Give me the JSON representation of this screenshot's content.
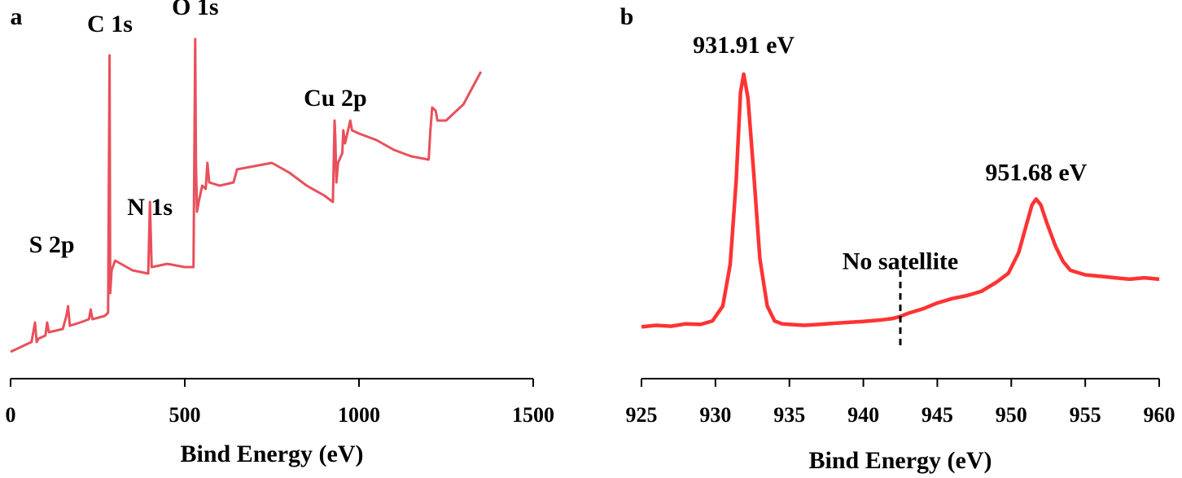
{
  "chart_data": [
    {
      "panel": "a",
      "type": "line",
      "xlabel": "Bind Energy (eV)",
      "ylabel": "",
      "xlim": [
        0,
        1500
      ],
      "ylim": [
        0,
        100
      ],
      "x_ticks": [
        "0",
        "500",
        "1000",
        "1500"
      ],
      "tick_values": [
        0,
        500,
        1000,
        1500
      ],
      "line_color": "#e8505b",
      "annotations": [
        {
          "text": "S 2p",
          "x": 165,
          "y": 15
        },
        {
          "text": "C 1s",
          "x": 285,
          "y": 92
        },
        {
          "text": "N 1s",
          "x": 400,
          "y": 40
        },
        {
          "text": "O 1s",
          "x": 530,
          "y": 96
        },
        {
          "text": "Cu 2p",
          "x": 932,
          "y": 60
        }
      ],
      "series": [
        {
          "x": [
            0,
            20,
            40,
            60,
            70,
            75,
            80,
            100,
            105,
            110,
            150,
            160,
            165,
            170,
            200,
            225,
            230,
            235,
            270,
            280,
            284,
            286,
            290,
            300,
            350,
            395,
            400,
            405,
            450,
            500,
            525,
            530,
            532,
            535,
            540,
            550,
            560,
            565,
            570,
            600,
            640,
            650,
            700,
            750,
            800,
            850,
            900,
            925,
            930,
            932,
            935,
            940,
            952,
            955,
            960,
            975,
            980,
            1000,
            1050,
            1100,
            1150,
            1200,
            1205,
            1210,
            1220,
            1225,
            1250,
            1300,
            1330,
            1350
          ],
          "y": [
            2,
            3,
            4,
            5,
            11,
            5,
            6,
            7,
            11,
            8,
            9,
            13,
            16,
            10,
            11,
            12,
            15,
            12,
            13,
            14,
            93,
            20,
            27,
            30,
            27,
            26,
            48,
            28,
            29,
            28,
            28,
            98,
            60,
            45,
            48,
            53,
            52,
            60,
            54,
            53,
            54,
            58,
            59,
            60,
            57,
            53,
            50,
            48,
            73,
            68,
            54,
            60,
            63,
            70,
            66,
            73,
            70,
            69,
            67,
            64,
            62,
            61,
            70,
            77,
            76,
            73,
            73,
            78,
            84,
            88
          ]
        }
      ]
    },
    {
      "panel": "b",
      "type": "line",
      "xlabel": "Bind Energy (eV)",
      "ylabel": "",
      "xlim": [
        925,
        960
      ],
      "ylim": [
        0,
        100
      ],
      "x_ticks": [
        "925",
        "930",
        "935",
        "940",
        "945",
        "950",
        "955",
        "960"
      ],
      "tick_values": [
        925,
        930,
        935,
        940,
        945,
        950,
        955,
        960
      ],
      "line_color": "#ff3333",
      "annotations": [
        {
          "text": "931.91 eV",
          "x": 931.91,
          "y": 83
        },
        {
          "text": "951.68 eV",
          "x": 951.68,
          "y": 41
        },
        {
          "text": "No satellite",
          "x": 942.5,
          "y": 15
        }
      ],
      "marker_x": 942.5,
      "series": [
        {
          "x": [
            925,
            926,
            927,
            928,
            929,
            929.8,
            930.5,
            931,
            931.4,
            931.7,
            931.91,
            932.2,
            932.6,
            933,
            933.5,
            934,
            934.5,
            935,
            936,
            937,
            938,
            939,
            940,
            941,
            942,
            942.5,
            943,
            944,
            945,
            946,
            947,
            948,
            949,
            949.8,
            950.5,
            951,
            951.4,
            951.68,
            952,
            952.4,
            953,
            953.5,
            954,
            955,
            956,
            957,
            958,
            959,
            960
          ],
          "y": [
            1,
            1.5,
            1.2,
            2,
            1.8,
            3,
            8,
            22,
            50,
            80,
            86,
            78,
            52,
            24,
            8,
            3,
            2,
            1.8,
            1.5,
            1.8,
            2.2,
            2.5,
            2.8,
            3.2,
            3.8,
            4.5,
            5.5,
            7,
            9,
            10.5,
            11.5,
            13,
            16,
            19,
            26,
            35,
            42,
            44,
            42,
            36,
            28,
            23,
            20,
            18.5,
            18,
            17.5,
            17,
            17.5,
            17
          ]
        }
      ]
    }
  ],
  "panels": [
    {
      "letter": "a"
    },
    {
      "letter": "b"
    }
  ]
}
